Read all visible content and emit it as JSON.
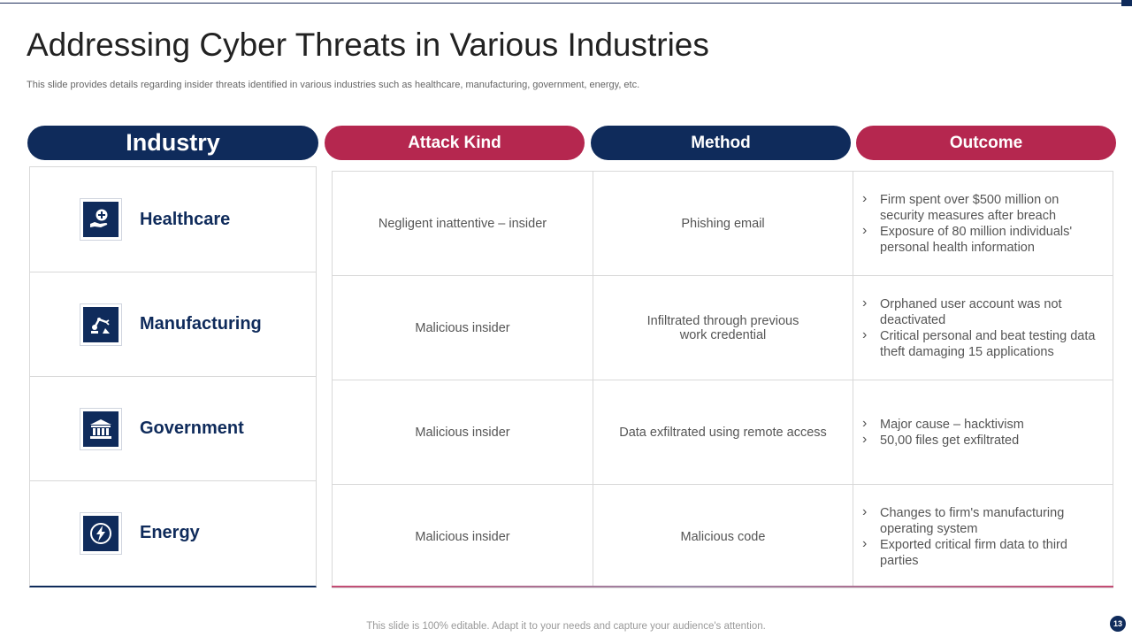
{
  "slide": {
    "title": "Addressing Cyber Threats in Various Industries",
    "subtitle": "This slide provides details regarding insider threats identified in various industries such as healthcare, manufacturing, government, energy, etc.",
    "footer": "This slide is 100% editable. Adapt it to your needs and capture your audience's attention.",
    "page_number": "13"
  },
  "headers": {
    "industry": "Industry",
    "attack_kind": "Attack Kind",
    "method": "Method",
    "outcome": "Outcome"
  },
  "colors": {
    "navy": "#0f2b5b",
    "crimson": "#b5274f"
  },
  "rows": [
    {
      "industry": "Healthcare",
      "icon": "healthcare-icon",
      "attack_kind": "Negligent inattentive – insider",
      "method": "Phishing email",
      "outcome": [
        "Firm spent over $500 million on security measures after breach",
        "Exposure of 80 million individuals' personal health information"
      ]
    },
    {
      "industry": "Manufacturing",
      "icon": "robot-arm-icon",
      "attack_kind": "Malicious insider",
      "method": "Infiltrated through previous work credential",
      "outcome": [
        "Orphaned user account was not deactivated",
        "Critical personal and beat testing data theft damaging 15 applications"
      ]
    },
    {
      "industry": "Government",
      "icon": "government-building-icon",
      "attack_kind": "Malicious insider",
      "method": "Data exfiltrated using remote access",
      "outcome": [
        "Major cause – hacktivism",
        "50,00 files get exfiltrated"
      ]
    },
    {
      "industry": "Energy",
      "icon": "energy-bolt-icon",
      "attack_kind": "Malicious insider",
      "method": "Malicious code",
      "outcome": [
        "Changes to firm's manufacturing operating system",
        "Exported critical firm data to third parties"
      ]
    }
  ]
}
